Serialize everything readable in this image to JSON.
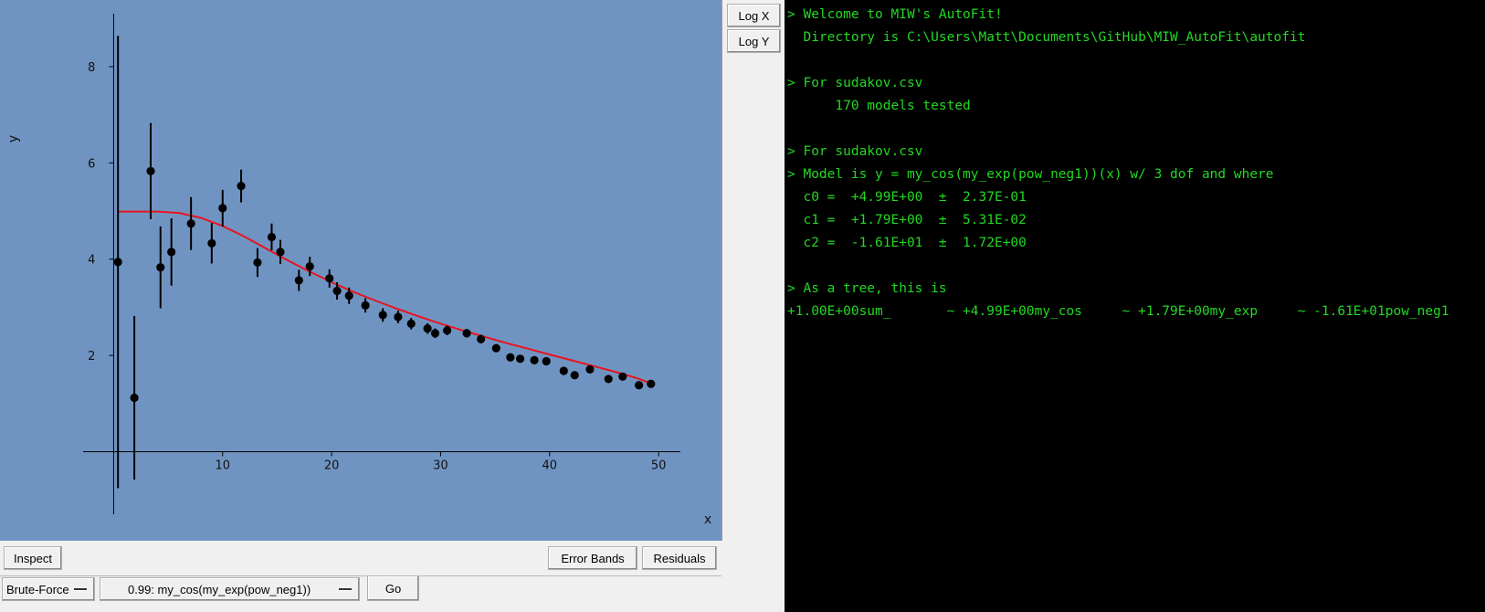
{
  "chart_data": {
    "type": "scatter",
    "xlabel": "x",
    "ylabel": "y",
    "xlim": [
      -2.8,
      52
    ],
    "ylim": [
      -1.3,
      9.1
    ],
    "xticks": [
      10,
      20,
      30,
      40,
      50
    ],
    "yticks": [
      2,
      4,
      6,
      8
    ],
    "grid": false,
    "legend": "none",
    "colors": {
      "background": "#7094c2",
      "points": "#000000",
      "fit": "#e8141e"
    },
    "points": [
      {
        "x": 0.4,
        "y": 3.94,
        "err": 4.7
      },
      {
        "x": 1.9,
        "y": 1.12,
        "err": 1.7
      },
      {
        "x": 3.4,
        "y": 5.83,
        "err": 1.0
      },
      {
        "x": 4.3,
        "y": 3.83,
        "err": 0.85
      },
      {
        "x": 5.3,
        "y": 4.15,
        "err": 0.7
      },
      {
        "x": 7.1,
        "y": 4.74,
        "err": 0.55
      },
      {
        "x": 9.0,
        "y": 4.33,
        "err": 0.42
      },
      {
        "x": 10.0,
        "y": 5.06,
        "err": 0.38
      },
      {
        "x": 11.7,
        "y": 5.52,
        "err": 0.34
      },
      {
        "x": 13.2,
        "y": 3.93,
        "err": 0.3
      },
      {
        "x": 14.5,
        "y": 4.46,
        "err": 0.28
      },
      {
        "x": 15.3,
        "y": 4.15,
        "err": 0.25
      },
      {
        "x": 17.0,
        "y": 3.56,
        "err": 0.22
      },
      {
        "x": 18.0,
        "y": 3.85,
        "err": 0.2
      },
      {
        "x": 19.8,
        "y": 3.6,
        "err": 0.19
      },
      {
        "x": 20.5,
        "y": 3.34,
        "err": 0.18
      },
      {
        "x": 21.6,
        "y": 3.24,
        "err": 0.17
      },
      {
        "x": 23.1,
        "y": 3.04,
        "err": 0.15
      },
      {
        "x": 24.7,
        "y": 2.84,
        "err": 0.14
      },
      {
        "x": 26.1,
        "y": 2.8,
        "err": 0.13
      },
      {
        "x": 27.3,
        "y": 2.66,
        "err": 0.12
      },
      {
        "x": 28.8,
        "y": 2.56,
        "err": 0.11
      },
      {
        "x": 29.5,
        "y": 2.46,
        "err": 0.1
      },
      {
        "x": 30.6,
        "y": 2.52,
        "err": 0.1
      },
      {
        "x": 32.4,
        "y": 2.46,
        "err": 0.09
      },
      {
        "x": 33.7,
        "y": 2.34,
        "err": 0.09
      },
      {
        "x": 35.1,
        "y": 2.15,
        "err": 0.08
      },
      {
        "x": 36.4,
        "y": 1.96,
        "err": 0.08
      },
      {
        "x": 37.3,
        "y": 1.93,
        "err": 0.07
      },
      {
        "x": 38.6,
        "y": 1.9,
        "err": 0.07
      },
      {
        "x": 39.7,
        "y": 1.88,
        "err": 0.07
      },
      {
        "x": 41.3,
        "y": 1.68,
        "err": 0.06
      },
      {
        "x": 42.3,
        "y": 1.59,
        "err": 0.06
      },
      {
        "x": 43.7,
        "y": 1.71,
        "err": 0.06
      },
      {
        "x": 45.4,
        "y": 1.51,
        "err": 0.05
      },
      {
        "x": 46.7,
        "y": 1.56,
        "err": 0.05
      },
      {
        "x": 48.2,
        "y": 1.38,
        "err": 0.05
      },
      {
        "x": 49.3,
        "y": 1.41,
        "err": 0.05
      }
    ],
    "fit": {
      "label": "0.99: my_cos(my_exp(pow_neg1))",
      "x": [
        0.4,
        2,
        4,
        6,
        8,
        10,
        12,
        14,
        16,
        18,
        20,
        22,
        24,
        26,
        28,
        30,
        32,
        34,
        36,
        38,
        40,
        42,
        44,
        46,
        48,
        49.3
      ],
      "y": [
        4.99,
        4.99,
        4.99,
        4.96,
        4.86,
        4.69,
        4.47,
        4.22,
        3.97,
        3.74,
        3.52,
        3.32,
        3.14,
        2.97,
        2.81,
        2.66,
        2.52,
        2.39,
        2.26,
        2.14,
        2.02,
        1.9,
        1.78,
        1.66,
        1.53,
        1.42
      ]
    }
  },
  "side": {
    "log_x": "Log X",
    "log_y": "Log Y"
  },
  "bottom": {
    "inspect": "Inspect",
    "error_bands": "Error Bands",
    "residuals": "Residuals",
    "mode": "Brute-Force",
    "model": "0.99: my_cos(my_exp(pow_neg1))",
    "go": "Go"
  },
  "console": {
    "lines": [
      "> Welcome to MIW's AutoFit!",
      "  Directory is C:\\Users\\Matt\\Documents\\GitHub\\MIW_AutoFit\\autofit",
      "",
      "> For sudakov.csv",
      "      170 models tested",
      "",
      "> For sudakov.csv",
      "> Model is y = my_cos(my_exp(pow_neg1))(x) w/ 3 dof and where",
      "  c0 =  +4.99E+00  ±  2.37E-01",
      "  c1 =  +1.79E+00  ±  5.31E-02",
      "  c2 =  -1.61E+01  ±  1.72E+00",
      "",
      "> As a tree, this is",
      "+1.00E+00sum_       ~ +4.99E+00my_cos     ~ +1.79E+00my_exp     ~ -1.61E+01pow_neg1"
    ]
  }
}
